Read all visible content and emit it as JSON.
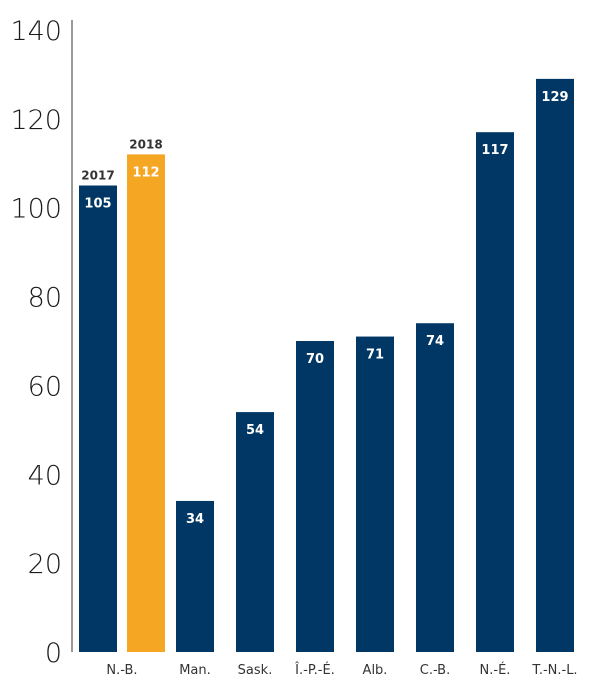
{
  "chart_data": {
    "type": "bar",
    "title": "",
    "xlabel": "",
    "ylabel": "",
    "ylim": [
      0,
      140
    ],
    "yticks": [
      0,
      20,
      40,
      60,
      80,
      100,
      120,
      140
    ],
    "grid": false,
    "legend": "none",
    "colors": {
      "primary": "#003764",
      "highlight": "#F5A623"
    },
    "bars": [
      {
        "category": "N.-B.",
        "year": "2017",
        "value": 105,
        "highlight": false
      },
      {
        "category": "N.-B.",
        "year": "2018",
        "value": 112,
        "highlight": true
      },
      {
        "category": "Man.",
        "value": 34,
        "highlight": false
      },
      {
        "category": "Sask.",
        "value": 54,
        "highlight": false
      },
      {
        "category": "Î.-P.-É.",
        "value": 70,
        "highlight": false
      },
      {
        "category": "Alb.",
        "value": 71,
        "highlight": false
      },
      {
        "category": "C.-B.",
        "value": 74,
        "highlight": false
      },
      {
        "category": "N.-É.",
        "value": 117,
        "highlight": false
      },
      {
        "category": "T.-N.-L.",
        "value": 129,
        "highlight": false
      }
    ],
    "categories": [
      "N.-B.",
      "Man.",
      "Sask.",
      "Î.-P.-É.",
      "Alb.",
      "C.-B.",
      "N.-É.",
      "T.-N.-L."
    ]
  }
}
